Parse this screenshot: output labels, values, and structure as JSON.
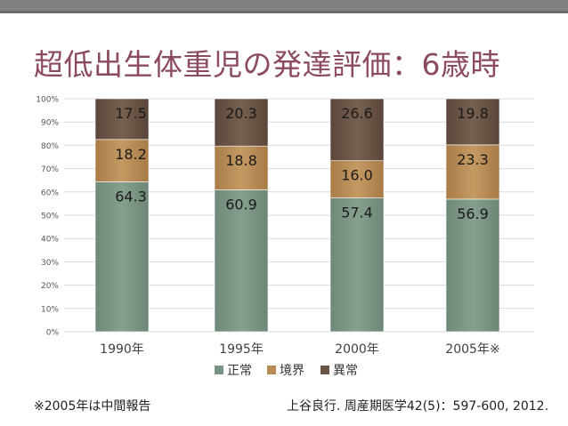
{
  "slide": {
    "title": "超低出生体重児の発達評価：6歳時",
    "footnote_left": "※2005年は中間報告",
    "footnote_right": "上谷良行. 周産期医学42(5)：597-600, 2012."
  },
  "chart_data": {
    "type": "bar",
    "stacked": true,
    "percent_axis": true,
    "categories": [
      "1990年",
      "1995年",
      "2000年",
      "2005年※"
    ],
    "series": [
      {
        "name": "正常",
        "values": [
          64.3,
          60.9,
          57.4,
          56.9
        ],
        "color": "#7a9484"
      },
      {
        "name": "境界",
        "values": [
          18.2,
          18.8,
          16.0,
          23.3
        ],
        "color": "#b98c57"
      },
      {
        "name": "異常",
        "values": [
          17.5,
          20.3,
          26.6,
          19.8
        ],
        "color": "#6b5448"
      }
    ],
    "data_labels": [
      [
        "64.3",
        "60.9",
        "57.4",
        "56.9"
      ],
      [
        "18.2",
        "18.8",
        "16.0",
        "23.3"
      ],
      [
        "17.5",
        "20.3",
        "26.6",
        "19.8"
      ]
    ],
    "y_ticks": [
      "0%",
      "10%",
      "20%",
      "30%",
      "40%",
      "50%",
      "60%",
      "70%",
      "80%",
      "90%",
      "100%"
    ],
    "ylim": [
      0,
      100
    ],
    "grid": true,
    "legend_position": "bottom"
  }
}
